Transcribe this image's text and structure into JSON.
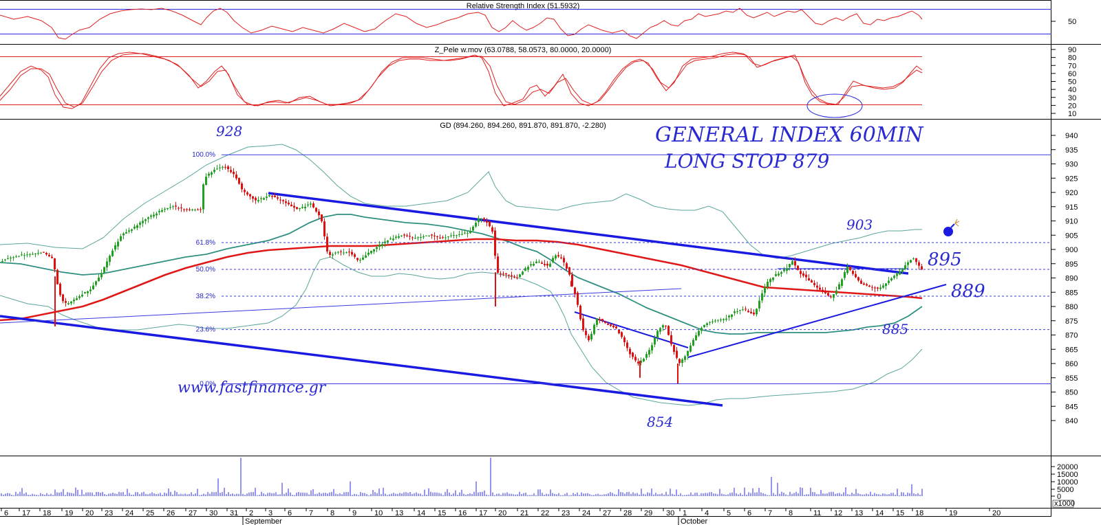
{
  "panels": {
    "rsi_title": "Relative Strength Index (51.5932)",
    "zpele_title": "Z_Pele w.mov (63.0788, 58.0573, 80.0000, 20.0000)",
    "price_title": "GD (894.260, 894.260, 891.870, 891.870, -2.280)"
  },
  "annotations": {
    "headline_1": "GENERAL INDEX 60MIN",
    "headline_2": "LONG STOP 879",
    "website": "www.fastfinance.gr",
    "level_928": "928",
    "level_903": "903",
    "level_895": "895",
    "level_889": "889",
    "level_885": "885",
    "level_854": "854"
  },
  "colors": {
    "price_up": "#22a022",
    "price_down": "#e01010",
    "ma_long": "#e01818",
    "ma_mid": "#2f8f80",
    "bollinger": "#5aa69a",
    "trendline": "#1a1ae0",
    "oscillator": "#e02020",
    "guide": "#3a3ae0"
  },
  "chart_data": [
    {
      "type": "line",
      "name": "rsi",
      "title": "Relative Strength Index (51.5932)",
      "yticks": [
        50
      ],
      "last_value": 51.5932,
      "levels": [
        70,
        30
      ]
    },
    {
      "type": "line",
      "name": "z_pele",
      "title": "Z_Pele w.mov (63.0788, 58.0573, 80.0000, 20.0000)",
      "yticks": [
        90,
        80,
        70,
        60,
        50,
        40,
        30,
        20,
        10
      ],
      "ylim": [
        5,
        95
      ],
      "levels": [
        80,
        20
      ],
      "series_values": [
        63.0788,
        58.0573
      ]
    },
    {
      "type": "candlestick",
      "name": "price",
      "title": "GD (894.260, 894.260, 891.870, 891.870, -2.280)",
      "ohlc_last": {
        "open": 894.26,
        "high": 894.26,
        "low": 891.87,
        "close": 891.87,
        "change": -2.28
      },
      "yticks": [
        940,
        935,
        930,
        925,
        920,
        915,
        910,
        905,
        900,
        895,
        890,
        885,
        880,
        875,
        870,
        865,
        860,
        855,
        850,
        845,
        840
      ],
      "ylim": [
        835,
        944
      ],
      "fib_levels": [
        {
          "label": "100.0%",
          "value": 933.2
        },
        {
          "label": "61.8%",
          "value": 902.4
        },
        {
          "label": "50.0%",
          "value": 893.0
        },
        {
          "label": "38.2%",
          "value": 883.6
        },
        {
          "label": "23.6%",
          "value": 871.9
        },
        {
          "label": "0.0%",
          "value": 852.9
        }
      ],
      "key_levels": [
        928,
        903,
        895,
        889,
        885,
        879,
        854
      ]
    },
    {
      "type": "bar",
      "name": "volume",
      "yticks": [
        "20000",
        "15000",
        "10000",
        "5000",
        "0"
      ],
      "unit_label": "x1000",
      "ylim": [
        0,
        26000
      ]
    }
  ],
  "x_axis": {
    "day_labels": [
      "6",
      "17",
      "18",
      "19",
      "20",
      "23",
      "24",
      "25",
      "26",
      "27",
      "30",
      "31",
      "2",
      "3",
      "6",
      "7",
      "8",
      "9",
      "10",
      "13",
      "14",
      "15",
      "16",
      "17",
      "20",
      "21",
      "22",
      "23",
      "24",
      "27",
      "28",
      "29",
      "30",
      "1",
      "4",
      "5",
      "6",
      "7",
      "8",
      "11",
      "12",
      "13",
      "14",
      "15",
      "18",
      "19",
      "20"
    ],
    "months": [
      "September",
      "October"
    ]
  }
}
